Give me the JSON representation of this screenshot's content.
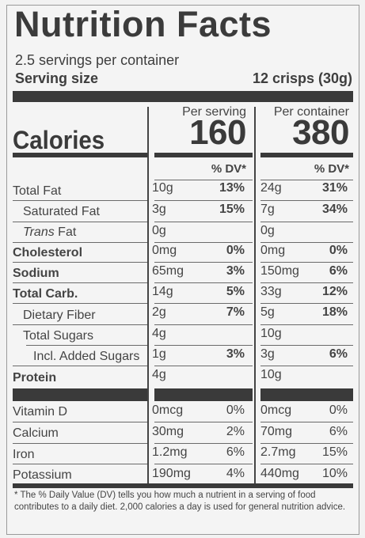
{
  "title": "Nutrition Facts",
  "servings_per_container": "2.5 servings per container",
  "serving_size_label": "Serving size",
  "serving_size_value": "12 crisps (30g)",
  "calories_label": "Calories",
  "columns": [
    {
      "header": "Per serving",
      "calories": "160",
      "dv_header": "% DV*"
    },
    {
      "header": "Per container",
      "calories": "380",
      "dv_header": "% DV*"
    }
  ],
  "nutrients": [
    {
      "name": "Total Fat",
      "style": "",
      "serving_amount": "10g",
      "serving_dv": "13%",
      "container_amount": "24g",
      "container_dv": "31%"
    },
    {
      "name": "Saturated Fat",
      "style": "indent",
      "serving_amount": "3g",
      "serving_dv": "15%",
      "container_amount": "7g",
      "container_dv": "34%"
    },
    {
      "name_italic": "Trans",
      "name_rest": " Fat",
      "style": "indent-italic",
      "serving_amount": "0g",
      "serving_dv": "",
      "container_amount": "0g",
      "container_dv": ""
    },
    {
      "name": "Cholesterol",
      "style": "bold",
      "serving_amount": "0mg",
      "serving_dv": "0%",
      "container_amount": "0mg",
      "container_dv": "0%"
    },
    {
      "name": "Sodium",
      "style": "bold",
      "serving_amount": "65mg",
      "serving_dv": "3%",
      "container_amount": "150mg",
      "container_dv": "6%"
    },
    {
      "name": "Total Carb.",
      "style": "bold",
      "serving_amount": "14g",
      "serving_dv": "5%",
      "container_amount": "33g",
      "container_dv": "12%"
    },
    {
      "name": "Dietary Fiber",
      "style": "indent",
      "serving_amount": "2g",
      "serving_dv": "7%",
      "container_amount": "5g",
      "container_dv": "18%"
    },
    {
      "name": "Total Sugars",
      "style": "indent",
      "serving_amount": "4g",
      "serving_dv": "",
      "container_amount": "10g",
      "container_dv": ""
    },
    {
      "name": "Incl. Added Sugars",
      "style": "indent2",
      "serving_amount": "1g",
      "serving_dv": "3%",
      "container_amount": "3g",
      "container_dv": "6%"
    },
    {
      "name": "Protein",
      "style": "bold",
      "serving_amount": "4g",
      "serving_dv": "",
      "container_amount": "10g",
      "container_dv": ""
    }
  ],
  "vitamins": [
    {
      "name": "Vitamin D",
      "serving_amount": "0mcg",
      "serving_dv": "0%",
      "container_amount": "0mcg",
      "container_dv": "0%"
    },
    {
      "name": "Calcium",
      "serving_amount": "30mg",
      "serving_dv": "2%",
      "container_amount": "70mg",
      "container_dv": "6%"
    },
    {
      "name": "Iron",
      "serving_amount": "1.2mg",
      "serving_dv": "6%",
      "container_amount": "2.7mg",
      "container_dv": "15%"
    },
    {
      "name": "Potassium",
      "serving_amount": "190mg",
      "serving_dv": "4%",
      "container_amount": "440mg",
      "container_dv": "10%"
    }
  ],
  "footnote": "* The % Daily Value (DV) tells you how much a nutrient in a serving of food contributes to a daily diet. 2,000 calories a day is used for general nutrition advice."
}
